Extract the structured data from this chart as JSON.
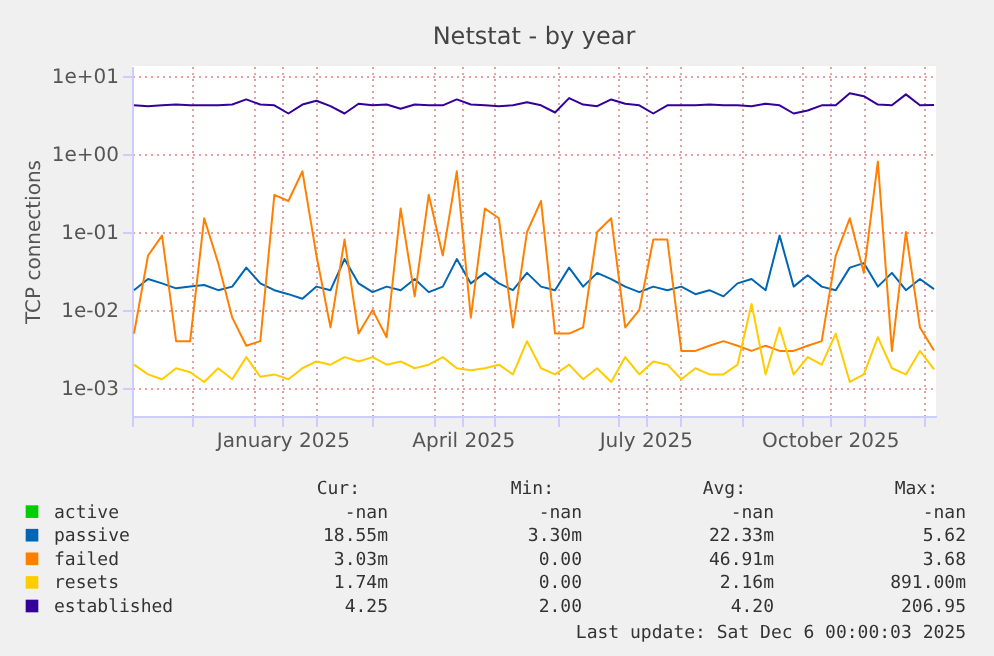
{
  "chart_data": {
    "type": "line",
    "title": "Netstat - by year",
    "ylabel": "TCP connections",
    "log": true,
    "grid": true,
    "legend": "bottom",
    "line_style": "solid",
    "marker": "none",
    "x": [
      "2024-11-02",
      "2024-11-09",
      "2024-11-16",
      "2024-11-23",
      "2024-11-30",
      "2024-12-07",
      "2024-12-14",
      "2024-12-21",
      "2024-12-28",
      "2025-01-04",
      "2025-01-11",
      "2025-01-18",
      "2025-01-25",
      "2025-02-01",
      "2025-02-08",
      "2025-02-15",
      "2025-02-22",
      "2025-03-01",
      "2025-03-08",
      "2025-03-15",
      "2025-03-22",
      "2025-03-29",
      "2025-04-05",
      "2025-04-12",
      "2025-04-19",
      "2025-04-26",
      "2025-05-03",
      "2025-05-10",
      "2025-05-17",
      "2025-05-24",
      "2025-05-31",
      "2025-06-07",
      "2025-06-14",
      "2025-06-21",
      "2025-06-28",
      "2025-07-05",
      "2025-07-12",
      "2025-07-19",
      "2025-07-26",
      "2025-08-02",
      "2025-08-09",
      "2025-08-16",
      "2025-08-23",
      "2025-08-30",
      "2025-09-06",
      "2025-09-13",
      "2025-09-20",
      "2025-09-27",
      "2025-10-04",
      "2025-10-11",
      "2025-10-18",
      "2025-10-25",
      "2025-11-01",
      "2025-11-08",
      "2025-11-15",
      "2025-11-22",
      "2025-11-29",
      "2025-12-06"
    ],
    "xlim": [
      "2024-11-01",
      "2025-12-07"
    ],
    "xticks": [
      {
        "value": "2024-11-01",
        "label": null
      },
      {
        "value": "2024-12-01",
        "label": null
      },
      {
        "value": "2025-01-01",
        "label": null
      },
      {
        "value": "2025-01-15",
        "label": "January 2025"
      },
      {
        "value": "2025-02-01",
        "label": null
      },
      {
        "value": "2025-03-01",
        "label": null
      },
      {
        "value": "2025-04-01",
        "label": null
      },
      {
        "value": "2025-04-15",
        "label": "April 2025"
      },
      {
        "value": "2025-05-01",
        "label": null
      },
      {
        "value": "2025-06-01",
        "label": null
      },
      {
        "value": "2025-07-01",
        "label": null
      },
      {
        "value": "2025-07-15",
        "label": "July 2025"
      },
      {
        "value": "2025-08-01",
        "label": null
      },
      {
        "value": "2025-09-01",
        "label": null
      },
      {
        "value": "2025-10-01",
        "label": null
      },
      {
        "value": "2025-10-15",
        "label": "October 2025"
      },
      {
        "value": "2025-11-01",
        "label": null
      },
      {
        "value": "2025-12-01",
        "label": null
      }
    ],
    "ylim": [
      0.00044,
      13.4
    ],
    "yticks": [
      {
        "value": 0.001,
        "label": "1e-03"
      },
      {
        "value": 0.01,
        "label": "1e-02"
      },
      {
        "value": 0.1,
        "label": "1e-01"
      },
      {
        "value": 1,
        "label": "1e+00"
      },
      {
        "value": 10,
        "label": "1e+01"
      }
    ],
    "series": [
      {
        "name": "active",
        "color": "#00cc00",
        "values": [
          null,
          null,
          null,
          null,
          null,
          null,
          null,
          null,
          null,
          null,
          null,
          null,
          null,
          null,
          null,
          null,
          null,
          null,
          null,
          null,
          null,
          null,
          null,
          null,
          null,
          null,
          null,
          null,
          null,
          null,
          null,
          null,
          null,
          null,
          null,
          null,
          null,
          null,
          null,
          null,
          null,
          null,
          null,
          null,
          null,
          null,
          null,
          null,
          null,
          null,
          null,
          null,
          null,
          null,
          null,
          null,
          null,
          null
        ]
      },
      {
        "name": "passive",
        "color": "#0066b3",
        "values": [
          0.018,
          0.025,
          0.022,
          0.019,
          0.02,
          0.021,
          0.018,
          0.02,
          0.035,
          0.022,
          0.018,
          0.016,
          0.014,
          0.02,
          0.018,
          0.045,
          0.022,
          0.017,
          0.02,
          0.018,
          0.025,
          0.017,
          0.02,
          0.045,
          0.022,
          0.03,
          0.022,
          0.018,
          0.03,
          0.02,
          0.018,
          0.035,
          0.02,
          0.03,
          0.025,
          0.02,
          0.017,
          0.02,
          0.018,
          0.02,
          0.016,
          0.018,
          0.015,
          0.022,
          0.025,
          0.018,
          0.09,
          0.02,
          0.028,
          0.02,
          0.018,
          0.035,
          0.04,
          0.02,
          0.03,
          0.018,
          0.025,
          0.01855
        ]
      },
      {
        "name": "failed",
        "color": "#ff8000",
        "values": [
          0.005,
          0.05,
          0.09,
          0.004,
          0.004,
          0.15,
          0.04,
          0.008,
          0.0035,
          0.004,
          0.3,
          0.25,
          0.6,
          0.05,
          0.006,
          0.08,
          0.005,
          0.01,
          0.0045,
          0.2,
          0.015,
          0.3,
          0.05,
          0.6,
          0.008,
          0.2,
          0.15,
          0.006,
          0.1,
          0.25,
          0.005,
          0.005,
          0.006,
          0.1,
          0.15,
          0.006,
          0.01,
          0.08,
          0.08,
          0.003,
          0.003,
          0.0035,
          0.004,
          0.0035,
          0.003,
          0.0035,
          0.003,
          0.003,
          0.0035,
          0.004,
          0.05,
          0.15,
          0.03,
          0.8,
          0.003,
          0.1,
          0.006,
          0.00303
        ]
      },
      {
        "name": "resets",
        "color": "#ffcc00",
        "values": [
          0.002,
          0.0015,
          0.0013,
          0.0018,
          0.0016,
          0.0012,
          0.0018,
          0.0013,
          0.0025,
          0.0014,
          0.0015,
          0.0013,
          0.0018,
          0.0022,
          0.002,
          0.0025,
          0.0022,
          0.0025,
          0.002,
          0.0022,
          0.0018,
          0.002,
          0.0025,
          0.0018,
          0.0017,
          0.0018,
          0.002,
          0.0015,
          0.004,
          0.0018,
          0.0015,
          0.002,
          0.0013,
          0.0018,
          0.0012,
          0.0025,
          0.0015,
          0.0022,
          0.002,
          0.0013,
          0.0018,
          0.0015,
          0.0015,
          0.002,
          0.012,
          0.0015,
          0.006,
          0.0015,
          0.0025,
          0.002,
          0.005,
          0.0012,
          0.0015,
          0.0045,
          0.0018,
          0.0015,
          0.003,
          0.00174
        ]
      },
      {
        "name": "established",
        "color": "#330099",
        "values": [
          4.2,
          4.1,
          4.2,
          4.3,
          4.2,
          4.2,
          4.2,
          4.3,
          5.0,
          4.3,
          4.2,
          3.3,
          4.3,
          4.8,
          4.1,
          3.3,
          4.4,
          4.2,
          4.3,
          3.8,
          4.3,
          4.2,
          4.2,
          5.0,
          4.3,
          4.2,
          4.1,
          4.2,
          4.6,
          4.2,
          3.4,
          5.2,
          4.3,
          4.1,
          5.0,
          4.4,
          4.2,
          3.3,
          4.2,
          4.2,
          4.2,
          4.3,
          4.2,
          4.2,
          4.1,
          4.4,
          4.2,
          3.3,
          3.6,
          4.2,
          4.2,
          6.0,
          5.5,
          4.3,
          4.2,
          5.8,
          4.2,
          4.25
        ]
      }
    ],
    "annotations": [
      "Cur:",
      "Min:",
      "Avg:",
      "Max:",
      "-nan",
      "-nan",
      "-nan",
      "-nan",
      "18.55m",
      "3.30m",
      "22.33m",
      "5.62",
      "3.03m",
      "0.00",
      "46.91m",
      "3.68",
      "1.74m",
      "0.00",
      "2.16m",
      "891.00m",
      "4.25",
      "2.00",
      "4.20",
      "206.95",
      "Last update:  Sat Dec  6 00:00:03 2025"
    ]
  }
}
